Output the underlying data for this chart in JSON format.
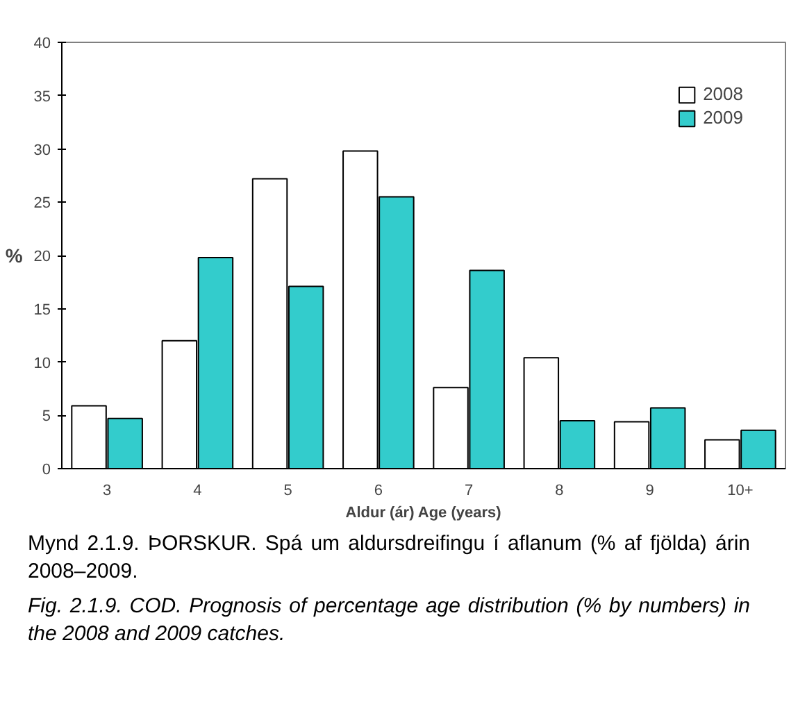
{
  "chart_data": {
    "type": "bar",
    "categories": [
      "3",
      "4",
      "5",
      "6",
      "7",
      "8",
      "9",
      "10+"
    ],
    "series": [
      {
        "name": "2008",
        "color": "#ffffff",
        "values": [
          5.9,
          12.0,
          27.2,
          29.8,
          7.6,
          10.4,
          4.4,
          2.7
        ]
      },
      {
        "name": "2009",
        "color": "#33cccc",
        "values": [
          4.7,
          19.8,
          17.1,
          25.5,
          18.6,
          4.5,
          5.7,
          3.6
        ]
      }
    ],
    "xlabel": "Aldur (ár) Age (years)",
    "ylabel": "%",
    "ylim": [
      0,
      40
    ],
    "yticks": [
      0,
      5,
      10,
      15,
      20,
      25,
      30,
      35,
      40
    ],
    "grid": false,
    "legend": "top right",
    "annotations": [
      "Mynd 2.1.9. ÞORSKUR. Spá um aldursdreifingu í aflanum (% af fjölda) árin 2008–2009.",
      "Fig. 2.1.9. COD. Prognosis of percentage age distribution (% by numbers) in the 2008 and 2009 catches."
    ]
  }
}
